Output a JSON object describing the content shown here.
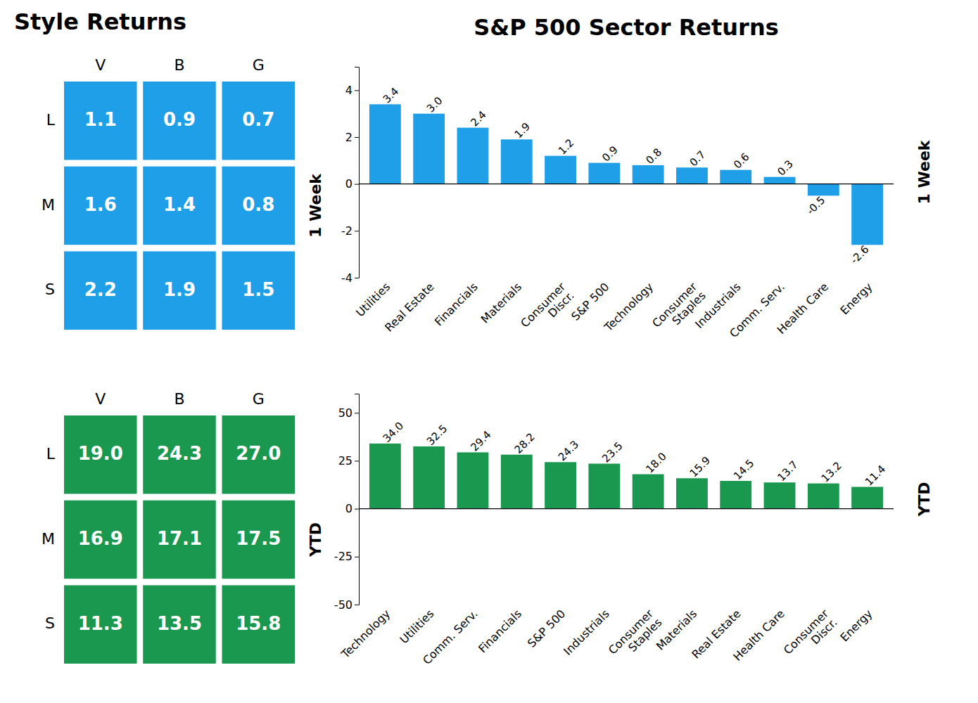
{
  "chart_data": [
    {
      "type": "heatmap",
      "title": "Style Returns",
      "subtitle": "1 Week",
      "x": [
        "V",
        "B",
        "G"
      ],
      "y": [
        "L",
        "M",
        "S"
      ],
      "values": [
        [
          1.1,
          0.9,
          0.7
        ],
        [
          1.6,
          1.4,
          0.8
        ],
        [
          2.2,
          1.9,
          1.5
        ]
      ],
      "color": "#1E9FE8",
      "data_labels": true
    },
    {
      "type": "heatmap",
      "subtitle": "YTD",
      "x": [
        "V",
        "B",
        "G"
      ],
      "y": [
        "L",
        "M",
        "S"
      ],
      "values": [
        [
          19.0,
          24.3,
          27.0
        ],
        [
          16.9,
          17.1,
          17.5
        ],
        [
          11.3,
          13.5,
          15.8
        ]
      ],
      "value_labels": [
        [
          "19.0",
          "24.3",
          "27.0"
        ],
        [
          "16.9",
          "17.1",
          "17.5"
        ],
        [
          "11.3",
          "13.5",
          "15.8"
        ]
      ],
      "color": "#1A9850",
      "data_labels": true
    },
    {
      "type": "bar",
      "title": "S&P 500 Sector Returns",
      "subtitle": "1 Week",
      "categories": [
        "Utilities",
        "Real Estate",
        "Financials",
        "Materials",
        "Consumer\nDiscr.",
        "S&P 500",
        "Technology",
        "Consumer\nStaples",
        "Industrials",
        "Comm. Serv.",
        "Health Care",
        "Energy"
      ],
      "values": [
        3.4,
        3.0,
        2.4,
        1.9,
        1.2,
        0.9,
        0.8,
        0.7,
        0.6,
        0.3,
        -0.5,
        -2.6
      ],
      "value_labels": [
        "3.4",
        "3.0",
        "2.4",
        "1.9",
        "1.2",
        "0.9",
        "0.8",
        "0.7",
        "0.6",
        "0.3",
        "-0.5",
        "-2.6"
      ],
      "color": "#1E9FE8",
      "ylim": [
        -4,
        5
      ],
      "yticks": [
        -4,
        -2,
        0,
        2,
        4
      ],
      "grid": false,
      "data_labels": true
    },
    {
      "type": "bar",
      "subtitle": "YTD",
      "categories": [
        "Technology",
        "Utilities",
        "Comm. Serv.",
        "Financials",
        "S&P 500",
        "Industrials",
        "Consumer\nStaples",
        "Materials",
        "Real Estate",
        "Health Care",
        "Consumer\nDiscr.",
        "Energy"
      ],
      "values": [
        34.0,
        32.5,
        29.4,
        28.2,
        24.3,
        23.5,
        18.0,
        15.9,
        14.5,
        13.7,
        13.2,
        11.4
      ],
      "value_labels": [
        "34.0",
        "32.5",
        "29.4",
        "28.2",
        "24.3",
        "23.5",
        "18.0",
        "15.9",
        "14.5",
        "13.7",
        "13.2",
        "11.4"
      ],
      "color": "#1A9850",
      "ylim": [
        -50,
        60
      ],
      "yticks": [
        -50,
        -25,
        0,
        25,
        50
      ],
      "grid": false,
      "data_labels": true
    }
  ]
}
